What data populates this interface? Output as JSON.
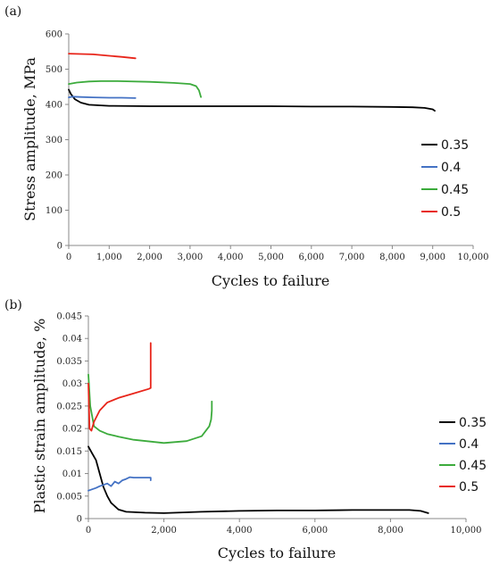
{
  "chart_data": [
    {
      "type": "line",
      "panel_label": "(a)",
      "xlabel": "Cycles to failure",
      "ylabel": "Stress amplitude, MPa",
      "xlim": [
        0,
        10000
      ],
      "ylim": [
        0,
        600
      ],
      "x_ticks": [
        0,
        1000,
        2000,
        3000,
        4000,
        5000,
        6000,
        7000,
        8000,
        9000,
        10000
      ],
      "x_tick_labels": [
        "0",
        "1,000",
        "2,000",
        "3,000",
        "4,000",
        "5,000",
        "6,000",
        "7,000",
        "8,000",
        "9,000",
        "10,000"
      ],
      "y_ticks": [
        0,
        100,
        200,
        300,
        400,
        500,
        600
      ],
      "y_tick_labels": [
        "0",
        "100",
        "200",
        "300",
        "400",
        "500",
        "600"
      ],
      "grid": false,
      "legend_position": "right",
      "series": [
        {
          "name": "0.35",
          "color": "#000000",
          "x": [
            0,
            50,
            150,
            300,
            500,
            1000,
            2000,
            3000,
            4000,
            5000,
            6000,
            7000,
            8000,
            8500,
            8800,
            9000,
            9050
          ],
          "y": [
            442,
            430,
            415,
            405,
            399,
            396,
            395,
            395,
            395,
            395,
            394,
            394,
            393,
            392,
            390,
            386,
            382
          ]
        },
        {
          "name": "0.4",
          "color": "#4472C4",
          "x": [
            0,
            100,
            300,
            600,
            1000,
            1300,
            1650
          ],
          "y": [
            420,
            422,
            421,
            420,
            419,
            419,
            418
          ]
        },
        {
          "name": "0.45",
          "color": "#3CAB3C",
          "x": [
            0,
            200,
            500,
            800,
            1200,
            2000,
            2600,
            3000,
            3150,
            3220,
            3270
          ],
          "y": [
            458,
            462,
            465,
            466,
            466,
            464,
            461,
            458,
            452,
            440,
            421
          ]
        },
        {
          "name": "0.5",
          "color": "#E8251A",
          "x": [
            0,
            300,
            600,
            1000,
            1300,
            1650
          ],
          "y": [
            544,
            543,
            542,
            538,
            535,
            531
          ]
        }
      ]
    },
    {
      "type": "line",
      "panel_label": "(b)",
      "xlabel": "Cycles to failure",
      "ylabel": "Plastic strain amplitude, %",
      "xlim": [
        0,
        10000
      ],
      "ylim": [
        0,
        0.045
      ],
      "x_ticks": [
        0,
        2000,
        4000,
        6000,
        8000,
        10000
      ],
      "x_tick_labels": [
        "0",
        "2,000",
        "4,000",
        "6,000",
        "8,000",
        "10,000"
      ],
      "y_ticks": [
        0,
        0.005,
        0.01,
        0.015,
        0.02,
        0.025,
        0.03,
        0.035,
        0.04,
        0.045
      ],
      "y_tick_labels": [
        "0",
        "0.005",
        "0.01",
        "0.015",
        "0.02",
        "0.025",
        "0.03",
        "0.035",
        "0.04",
        "0.045"
      ],
      "grid": false,
      "legend_position": "right",
      "series": [
        {
          "name": "0.35",
          "color": "#000000",
          "x": [
            0,
            100,
            200,
            300,
            400,
            500,
            600,
            800,
            1000,
            1500,
            2000,
            3000,
            4000,
            5000,
            6000,
            7000,
            8000,
            8500,
            8800,
            9000
          ],
          "y": [
            0.016,
            0.0145,
            0.013,
            0.01,
            0.007,
            0.005,
            0.0035,
            0.002,
            0.0015,
            0.0013,
            0.0012,
            0.0015,
            0.0017,
            0.0018,
            0.0018,
            0.0019,
            0.0019,
            0.0019,
            0.0017,
            0.0012
          ]
        },
        {
          "name": "0.4",
          "color": "#4472C4",
          "x": [
            0,
            100,
            200,
            300,
            400,
            500,
            600,
            700,
            800,
            900,
            1000,
            1100,
            1200,
            1400,
            1650,
            1650
          ],
          "y": [
            0.0062,
            0.0065,
            0.0068,
            0.0072,
            0.0075,
            0.0078,
            0.0072,
            0.0082,
            0.0078,
            0.0085,
            0.0088,
            0.0092,
            0.0091,
            0.0091,
            0.0091,
            0.0085
          ]
        },
        {
          "name": "0.45",
          "color": "#3CAB3C",
          "x": [
            0,
            50,
            150,
            300,
            500,
            800,
            1200,
            2000,
            2600,
            3000,
            3200,
            3250,
            3270,
            3270
          ],
          "y": [
            0.032,
            0.025,
            0.0205,
            0.0195,
            0.0188,
            0.0182,
            0.0175,
            0.0168,
            0.0172,
            0.0183,
            0.0205,
            0.022,
            0.024,
            0.026
          ]
        },
        {
          "name": "0.5",
          "color": "#E8251A",
          "x": [
            0,
            30,
            80,
            150,
            300,
            500,
            800,
            1200,
            1600,
            1650,
            1650
          ],
          "y": [
            0.03,
            0.02,
            0.0195,
            0.0215,
            0.024,
            0.0258,
            0.0268,
            0.0278,
            0.0288,
            0.029,
            0.039
          ]
        }
      ]
    }
  ]
}
